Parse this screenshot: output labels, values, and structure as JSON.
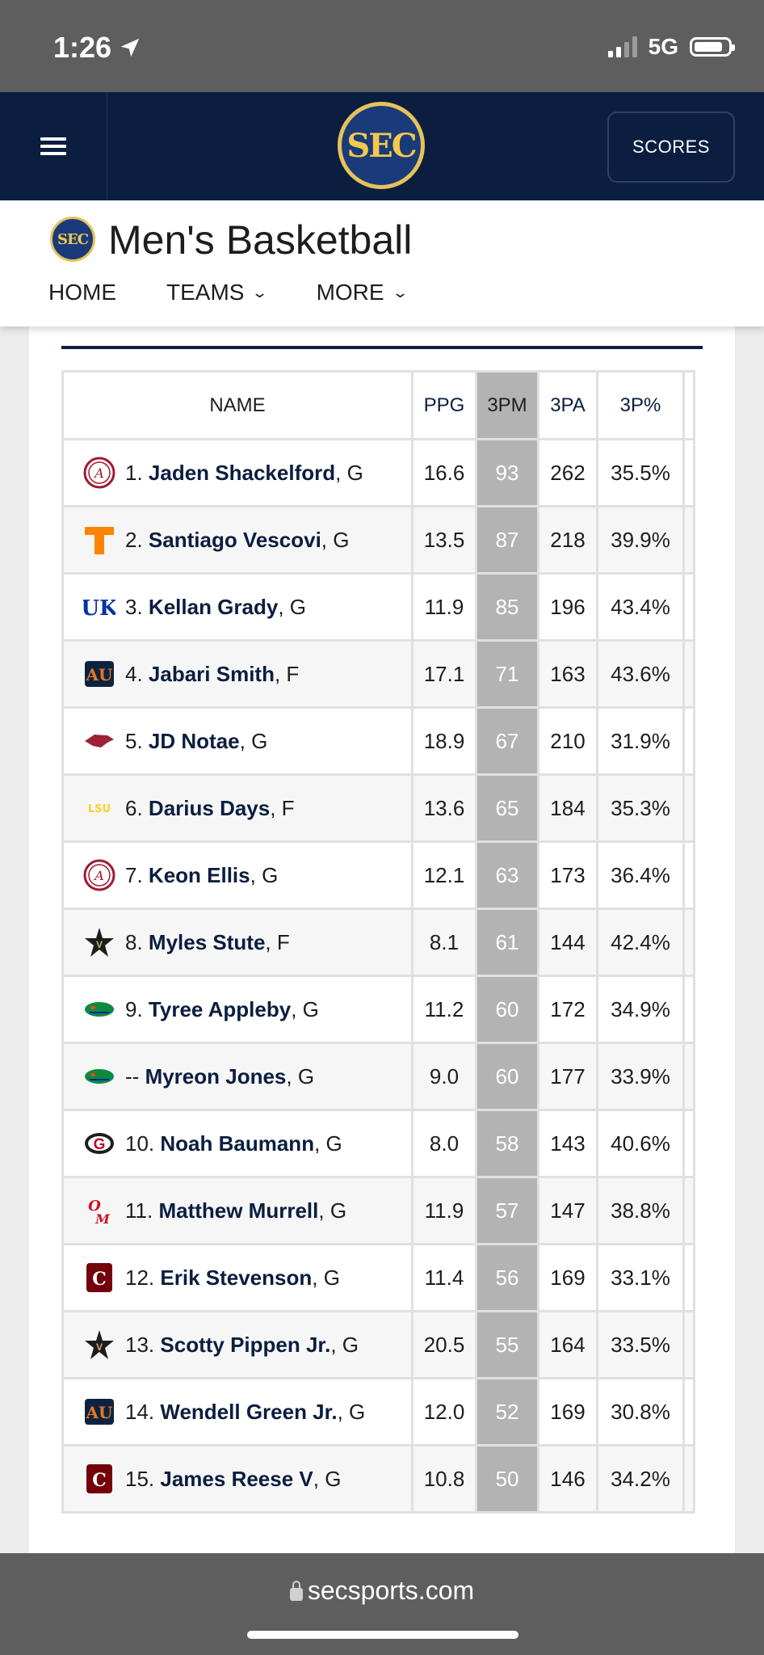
{
  "status": {
    "time": "1:26",
    "network": "5G"
  },
  "header": {
    "scores_label": "SCORES",
    "logo_text": "SEC"
  },
  "subheader": {
    "title": "Men's Basketball",
    "nav": [
      {
        "label": "HOME"
      },
      {
        "label": "TEAMS"
      },
      {
        "label": "MORE"
      }
    ]
  },
  "table": {
    "headers": {
      "name": "NAME",
      "ppg": "PPG",
      "tpm": "3PM",
      "tpa": "3PA",
      "tpp": "3P%"
    },
    "rows": [
      {
        "rank": "1.",
        "name": "Jaden Shackelford",
        "pos": ", G",
        "team": "alabama",
        "ppg": "16.6",
        "tpm": "93",
        "tpa": "262",
        "tpp": "35.5%"
      },
      {
        "rank": "2.",
        "name": "Santiago Vescovi",
        "pos": ", G",
        "team": "tennessee",
        "ppg": "13.5",
        "tpm": "87",
        "tpa": "218",
        "tpp": "39.9%"
      },
      {
        "rank": "3.",
        "name": "Kellan Grady",
        "pos": ", G",
        "team": "kentucky",
        "ppg": "11.9",
        "tpm": "85",
        "tpa": "196",
        "tpp": "43.4%"
      },
      {
        "rank": "4.",
        "name": "Jabari Smith",
        "pos": ", F",
        "team": "auburn",
        "ppg": "17.1",
        "tpm": "71",
        "tpa": "163",
        "tpp": "43.6%"
      },
      {
        "rank": "5.",
        "name": "JD Notae",
        "pos": ", G",
        "team": "arkansas",
        "ppg": "18.9",
        "tpm": "67",
        "tpa": "210",
        "tpp": "31.9%"
      },
      {
        "rank": "6.",
        "name": "Darius Days",
        "pos": ", F",
        "team": "lsu",
        "ppg": "13.6",
        "tpm": "65",
        "tpa": "184",
        "tpp": "35.3%"
      },
      {
        "rank": "7.",
        "name": "Keon Ellis",
        "pos": ", G",
        "team": "alabama",
        "ppg": "12.1",
        "tpm": "63",
        "tpa": "173",
        "tpp": "36.4%"
      },
      {
        "rank": "8.",
        "name": "Myles Stute",
        "pos": ", F",
        "team": "vanderbilt",
        "ppg": "8.1",
        "tpm": "61",
        "tpa": "144",
        "tpp": "42.4%"
      },
      {
        "rank": "9.",
        "name": "Tyree Appleby",
        "pos": ", G",
        "team": "florida",
        "ppg": "11.2",
        "tpm": "60",
        "tpa": "172",
        "tpp": "34.9%"
      },
      {
        "rank": "--",
        "name": "Myreon Jones",
        "pos": ", G",
        "team": "florida",
        "ppg": "9.0",
        "tpm": "60",
        "tpa": "177",
        "tpp": "33.9%"
      },
      {
        "rank": "10.",
        "name": "Noah Baumann",
        "pos": ", G",
        "team": "georgia",
        "ppg": "8.0",
        "tpm": "58",
        "tpa": "143",
        "tpp": "40.6%"
      },
      {
        "rank": "11.",
        "name": "Matthew Murrell",
        "pos": ", G",
        "team": "olemiss",
        "ppg": "11.9",
        "tpm": "57",
        "tpa": "147",
        "tpp": "38.8%"
      },
      {
        "rank": "12.",
        "name": "Erik Stevenson",
        "pos": ", G",
        "team": "southcarolina",
        "ppg": "11.4",
        "tpm": "56",
        "tpa": "169",
        "tpp": "33.1%"
      },
      {
        "rank": "13.",
        "name": "Scotty Pippen Jr.",
        "pos": ", G",
        "team": "vanderbilt",
        "ppg": "20.5",
        "tpm": "55",
        "tpa": "164",
        "tpp": "33.5%"
      },
      {
        "rank": "14.",
        "name": "Wendell Green Jr.",
        "pos": ", G",
        "team": "auburn",
        "ppg": "12.0",
        "tpm": "52",
        "tpa": "169",
        "tpp": "30.8%"
      },
      {
        "rank": "15.",
        "name": "James Reese V",
        "pos": ", G",
        "team": "southcarolina",
        "ppg": "10.8",
        "tpm": "50",
        "tpa": "146",
        "tpp": "34.2%"
      }
    ]
  },
  "browser": {
    "url": "secsports.com"
  },
  "colors": {
    "navy": "#0b1e3f",
    "highlight_col": "#b3b3b3",
    "sec_gold": "#e6c25a"
  }
}
